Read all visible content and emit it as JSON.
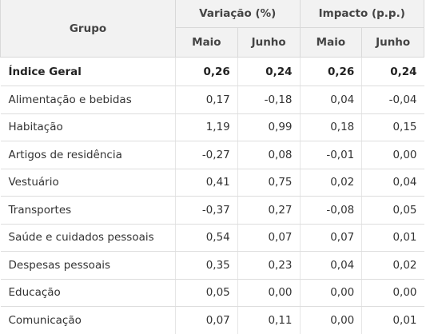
{
  "table": {
    "headers": {
      "group": "Grupo",
      "variation": "Variação (%)",
      "impact": "Impacto (p.p.)",
      "sub": [
        "Maio",
        "Junho",
        "Maio",
        "Junho"
      ]
    },
    "rows": [
      {
        "name": "Índice Geral",
        "values": [
          "0,26",
          "0,24",
          "0,26",
          "0,24"
        ]
      },
      {
        "name": "Alimentação e bebidas",
        "values": [
          "0,17",
          "-0,18",
          "0,04",
          "-0,04"
        ]
      },
      {
        "name": "Habitação",
        "values": [
          "1,19",
          "0,99",
          "0,18",
          "0,15"
        ]
      },
      {
        "name": "Artigos de residência",
        "values": [
          "-0,27",
          "0,08",
          "-0,01",
          "0,00"
        ]
      },
      {
        "name": "Vestuário",
        "values": [
          "0,41",
          "0,75",
          "0,02",
          "0,04"
        ]
      },
      {
        "name": "Transportes",
        "values": [
          "-0,37",
          "0,27",
          "-0,08",
          "0,05"
        ]
      },
      {
        "name": "Saúde e cuidados pessoais",
        "values": [
          "0,54",
          "0,07",
          "0,07",
          "0,01"
        ]
      },
      {
        "name": "Despesas pessoais",
        "values": [
          "0,35",
          "0,23",
          "0,04",
          "0,02"
        ]
      },
      {
        "name": "Educação",
        "values": [
          "0,05",
          "0,00",
          "0,00",
          "0,00"
        ]
      },
      {
        "name": "Comunicação",
        "values": [
          "0,07",
          "0,11",
          "0,00",
          "0,01"
        ]
      }
    ]
  }
}
